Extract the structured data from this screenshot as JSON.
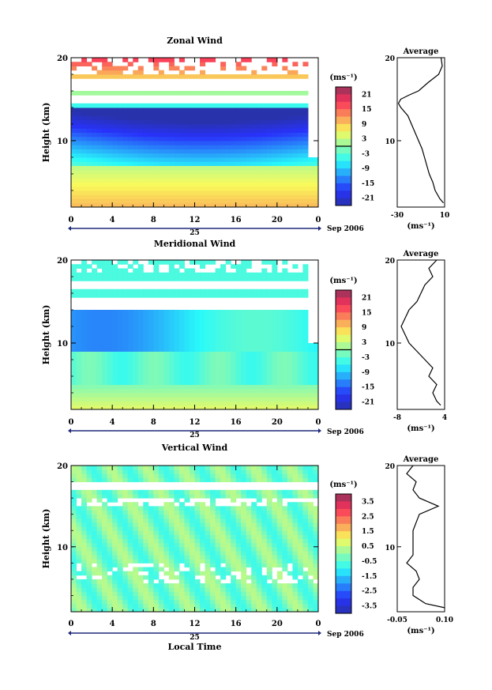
{
  "chart_data": [
    {
      "type": "heatmap",
      "title": "Zonal Wind",
      "xlabel": "",
      "ylabel": "Height (km)",
      "x_ticks": [
        "0",
        "4",
        "8",
        "12",
        "16",
        "20",
        "0"
      ],
      "y_ticks": [
        "20",
        "10"
      ],
      "xlim": [
        0,
        24
      ],
      "ylim": [
        2,
        20
      ],
      "date_label": "25",
      "month_label": "Sep 2006",
      "colorbar": {
        "unit_label": "(ms⁻¹)",
        "ticks": [
          "21",
          "15",
          "9",
          "3",
          "-3",
          "-9",
          "-15",
          "-21"
        ],
        "range": [
          -24,
          24
        ]
      },
      "profile": {
        "title": "Average",
        "xlabel": "(ms⁻¹)",
        "x_ticks": [
          "-30",
          "10"
        ],
        "y_ticks": [
          "20",
          "10"
        ],
        "xlim": [
          -30,
          10
        ],
        "heights": [
          2.5,
          3,
          4,
          5,
          6,
          7,
          8,
          9,
          10,
          11,
          12,
          13,
          14,
          14.5,
          15,
          15.5,
          16,
          17,
          18,
          19,
          20
        ],
        "values": [
          9,
          6,
          2,
          0,
          -3,
          -5,
          -7,
          -9,
          -12,
          -15,
          -18,
          -21,
          -27,
          -29,
          -27,
          -20,
          -12,
          -4,
          5,
          8,
          7
        ]
      }
    },
    {
      "type": "heatmap",
      "title": "Meridional Wind",
      "xlabel": "",
      "ylabel": "Height (km)",
      "x_ticks": [
        "0",
        "4",
        "8",
        "12",
        "16",
        "20",
        "0"
      ],
      "y_ticks": [
        "20",
        "10"
      ],
      "xlim": [
        0,
        24
      ],
      "ylim": [
        2,
        20
      ],
      "date_label": "25",
      "month_label": "Sep 2006",
      "colorbar": {
        "unit_label": "(ms⁻¹)",
        "ticks": [
          "21",
          "15",
          "9",
          "3",
          "-3",
          "-9",
          "-15",
          "-21"
        ],
        "range": [
          -24,
          24
        ]
      },
      "profile": {
        "title": "Average",
        "xlabel": "(ms⁻¹)",
        "x_ticks": [
          "-8",
          "4"
        ],
        "y_ticks": [
          "20",
          "10"
        ],
        "xlim": [
          -8,
          4
        ],
        "heights": [
          2.5,
          3,
          4,
          5,
          6,
          7,
          8,
          9,
          10,
          11,
          12,
          13,
          14,
          15,
          16,
          17,
          18,
          19,
          20
        ],
        "values": [
          3,
          2,
          1,
          2,
          0,
          1,
          -1,
          -3,
          -5,
          -6,
          -7,
          -6,
          -5,
          -3,
          -2,
          -1,
          1,
          0,
          2
        ]
      }
    },
    {
      "type": "heatmap",
      "title": "Vertical Wind",
      "xlabel": "Local Time",
      "ylabel": "Height (km)",
      "x_ticks": [
        "0",
        "4",
        "8",
        "12",
        "16",
        "20",
        "0"
      ],
      "y_ticks": [
        "20",
        "10"
      ],
      "xlim": [
        0,
        24
      ],
      "ylim": [
        2,
        20
      ],
      "date_label": "25",
      "month_label": "Sep 2006",
      "colorbar": {
        "unit_label": "(ms⁻¹)",
        "ticks": [
          "3.5",
          "2.5",
          "1.5",
          "0.5",
          "-0.5",
          "-1.5",
          "-2.5",
          "-3.5"
        ],
        "range": [
          -4,
          4
        ]
      },
      "profile": {
        "title": "Average",
        "xlabel": "(ms⁻¹)",
        "x_ticks": [
          "-0.05",
          "0.10"
        ],
        "y_ticks": [
          "20",
          "10"
        ],
        "xlim": [
          -0.05,
          0.1
        ],
        "heights": [
          2.5,
          3,
          4,
          5,
          6,
          7,
          8,
          9,
          10,
          11,
          12,
          13,
          14,
          15,
          16,
          17,
          18,
          19,
          20
        ],
        "values": [
          0.1,
          0.04,
          0.0,
          0.0,
          0.02,
          0.01,
          -0.02,
          0.0,
          0.0,
          0.0,
          0.0,
          0.01,
          0.02,
          0.08,
          0.02,
          0.0,
          0.01,
          -0.02,
          0.0
        ]
      }
    }
  ]
}
